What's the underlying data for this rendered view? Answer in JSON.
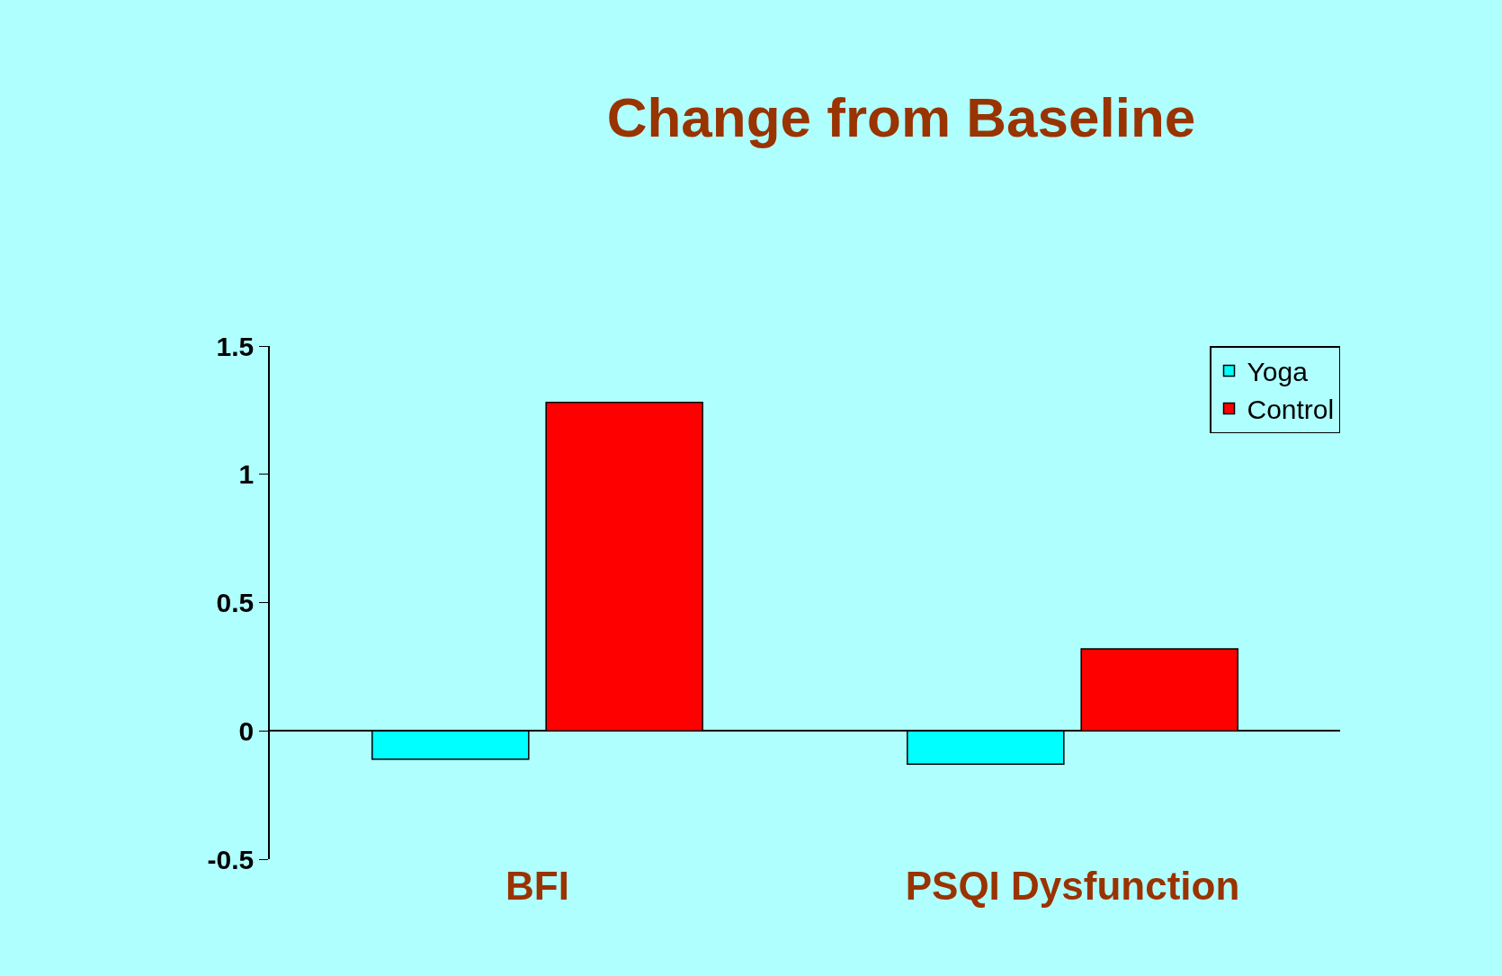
{
  "chart_data": {
    "type": "bar",
    "title": "Change from Baseline",
    "categories": [
      "BFI",
      "PSQI Dysfunction"
    ],
    "series": [
      {
        "name": "Yoga",
        "color": "#00ffff",
        "values": [
          -0.11,
          -0.13
        ]
      },
      {
        "name": "Control",
        "color": "#ff0000",
        "values": [
          1.28,
          0.32
        ]
      }
    ],
    "ylim": [
      -0.5,
      1.5
    ],
    "yticks": [
      -0.5,
      0,
      0.5,
      1,
      1.5
    ],
    "legend": "top right"
  }
}
